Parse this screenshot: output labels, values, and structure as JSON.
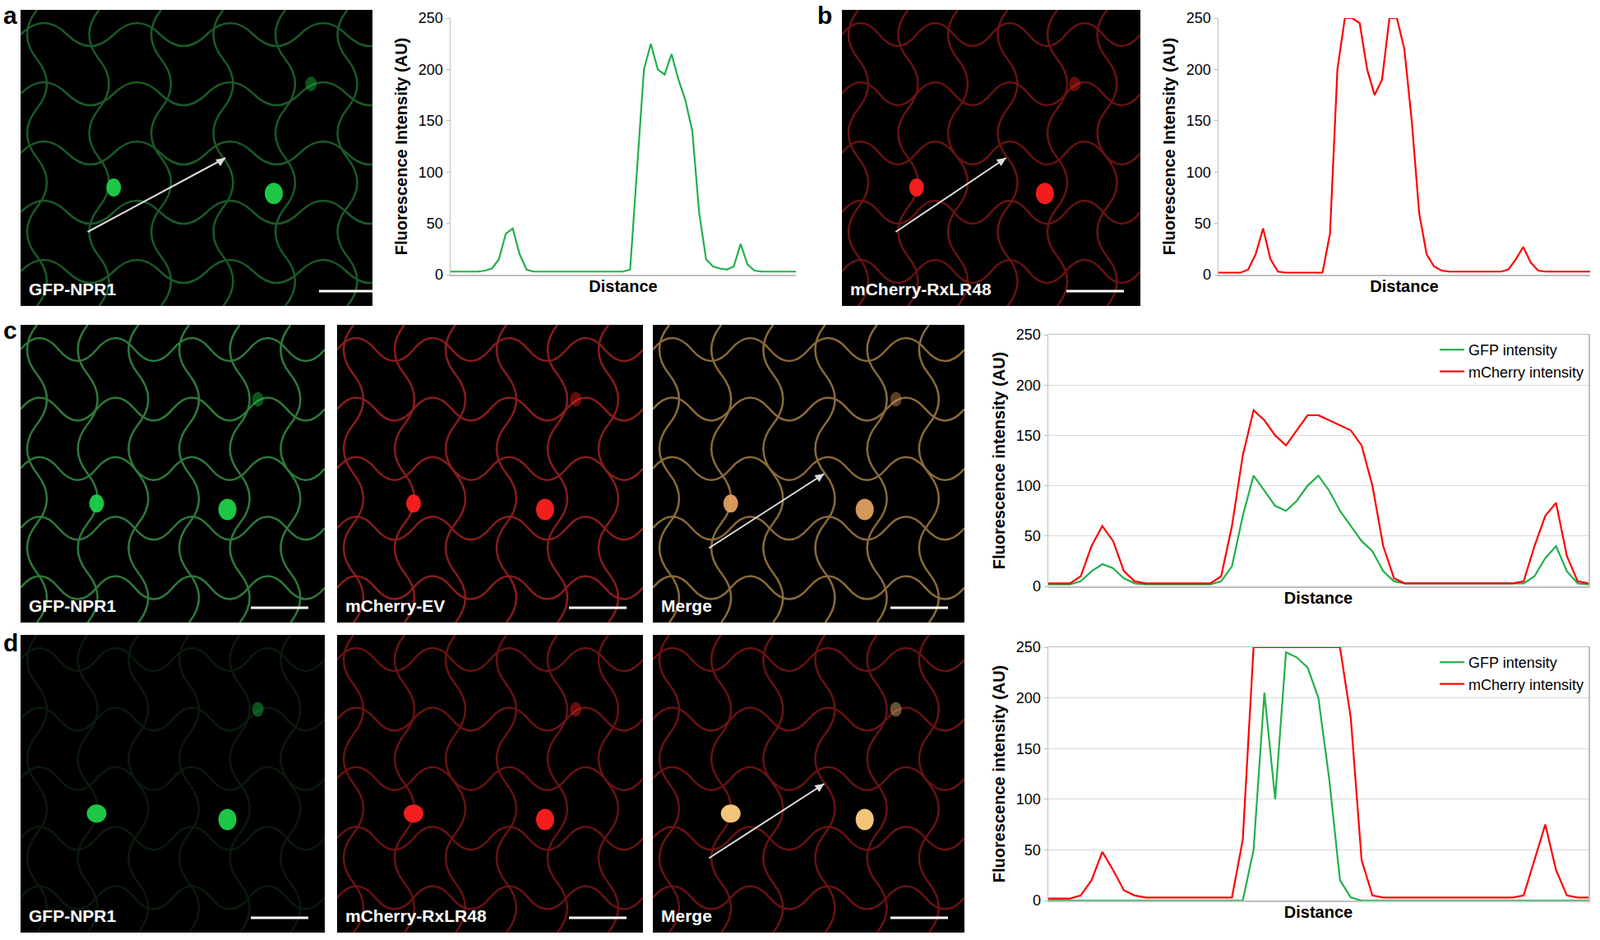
{
  "panels": [
    {
      "letter": "a",
      "images": [
        "GFP-NPR1"
      ]
    },
    {
      "letter": "b",
      "images": [
        "mCherry-RxLR48"
      ]
    },
    {
      "letter": "c",
      "images": [
        "GFP-NPR1",
        "mCherry-EV",
        "Merge"
      ]
    },
    {
      "letter": "d",
      "images": [
        "GFP-NPR1",
        "mCherry-RxLR48",
        "Merge"
      ]
    }
  ],
  "chart_data": [
    {
      "type": "line",
      "xlabel": "Distance",
      "ylabel": "Fluorescence Intensity (AU)",
      "x": [
        0,
        2,
        4,
        6,
        8,
        10,
        12,
        14,
        16,
        18,
        20,
        22,
        24,
        26,
        28,
        30,
        32,
        34,
        36,
        38,
        40,
        42,
        44,
        46,
        48,
        50,
        52,
        54,
        56,
        58,
        60,
        62,
        64,
        66,
        68,
        70,
        72,
        74,
        76,
        78,
        80,
        82,
        84,
        86,
        88,
        90,
        92,
        94,
        96,
        98,
        100
      ],
      "xlim": [
        0,
        100
      ],
      "ylim": [
        0,
        250
      ],
      "yticks": [
        0,
        50,
        100,
        150,
        200,
        250
      ],
      "grid": false,
      "tick_labels": "y",
      "series": [
        {
          "color": "#22b04b",
          "values": [
            3,
            3,
            3,
            3,
            3,
            4,
            6,
            15,
            40,
            45,
            20,
            5,
            3,
            3,
            3,
            3,
            3,
            3,
            3,
            3,
            3,
            3,
            3,
            3,
            3,
            3,
            5,
            100,
            200,
            225,
            200,
            195,
            215,
            190,
            170,
            140,
            60,
            15,
            8,
            6,
            5,
            8,
            30,
            10,
            4,
            3,
            3,
            3,
            3,
            3,
            3
          ]
        }
      ]
    },
    {
      "type": "line",
      "xlabel": "Distance",
      "ylabel": "Fluorescence Intensity (AU)",
      "x": [
        0,
        2,
        4,
        6,
        8,
        10,
        12,
        14,
        16,
        18,
        20,
        22,
        24,
        26,
        28,
        30,
        32,
        34,
        36,
        38,
        40,
        42,
        44,
        46,
        48,
        50,
        52,
        54,
        56,
        58,
        60,
        62,
        64,
        66,
        68,
        70,
        72,
        74,
        76,
        78,
        80,
        82,
        84,
        86,
        88,
        90,
        92,
        94,
        96,
        98,
        100
      ],
      "xlim": [
        0,
        100
      ],
      "ylim": [
        0,
        250
      ],
      "yticks": [
        0,
        50,
        100,
        150,
        200,
        250
      ],
      "grid": false,
      "tick_labels": "y",
      "series": [
        {
          "color": "#ff0000",
          "values": [
            2,
            2,
            2,
            2,
            5,
            20,
            45,
            15,
            3,
            2,
            2,
            2,
            2,
            2,
            2,
            40,
            200,
            250,
            250,
            245,
            200,
            175,
            190,
            250,
            250,
            220,
            150,
            60,
            20,
            8,
            4,
            3,
            3,
            3,
            3,
            3,
            3,
            3,
            3,
            5,
            15,
            27,
            12,
            4,
            3,
            3,
            3,
            3,
            3,
            3,
            3
          ]
        }
      ]
    },
    {
      "type": "line",
      "xlabel": "Distance",
      "ylabel": "Fluorescence intensity (AU)",
      "x": [
        0,
        2,
        4,
        6,
        8,
        10,
        12,
        14,
        16,
        18,
        20,
        22,
        24,
        26,
        28,
        30,
        32,
        34,
        36,
        38,
        40,
        42,
        44,
        46,
        48,
        50,
        52,
        54,
        56,
        58,
        60,
        62,
        64,
        66,
        68,
        70,
        72,
        74,
        76,
        78,
        80,
        82,
        84,
        86,
        88,
        90,
        92,
        94,
        96,
        98,
        100
      ],
      "xlim": [
        0,
        100
      ],
      "ylim": [
        0,
        250
      ],
      "yticks": [
        0,
        50,
        100,
        150,
        200,
        250
      ],
      "grid": true,
      "tick_labels": "y",
      "legend": "upper right",
      "series": [
        {
          "name": "GFP intensity",
          "color": "#22b04b",
          "values": [
            2,
            2,
            2,
            5,
            15,
            22,
            18,
            8,
            3,
            2,
            2,
            2,
            2,
            2,
            2,
            2,
            5,
            20,
            70,
            110,
            95,
            80,
            75,
            85,
            100,
            110,
            95,
            75,
            60,
            45,
            35,
            15,
            5,
            3,
            3,
            3,
            3,
            3,
            3,
            3,
            3,
            3,
            3,
            3,
            3,
            10,
            28,
            40,
            15,
            3,
            2
          ]
        },
        {
          "name": "mCherry intensity",
          "color": "#ff0000",
          "values": [
            3,
            3,
            3,
            10,
            40,
            60,
            45,
            15,
            5,
            3,
            3,
            3,
            3,
            3,
            3,
            3,
            10,
            60,
            130,
            175,
            165,
            150,
            140,
            155,
            170,
            170,
            165,
            160,
            155,
            140,
            100,
            40,
            8,
            3,
            3,
            3,
            3,
            3,
            3,
            3,
            3,
            3,
            3,
            3,
            5,
            40,
            70,
            83,
            30,
            5,
            3
          ]
        }
      ]
    },
    {
      "type": "line",
      "xlabel": "Distance",
      "ylabel": "Fluorescence intensity (AU)",
      "x": [
        0,
        2,
        4,
        6,
        8,
        10,
        12,
        14,
        16,
        18,
        20,
        22,
        24,
        26,
        28,
        30,
        32,
        34,
        36,
        38,
        40,
        42,
        44,
        46,
        48,
        50,
        52,
        54,
        56,
        58,
        60,
        62,
        64,
        66,
        68,
        70,
        72,
        74,
        76,
        78,
        80,
        82,
        84,
        86,
        88,
        90,
        92,
        94,
        96,
        98,
        100
      ],
      "xlim": [
        0,
        100
      ],
      "ylim": [
        0,
        250
      ],
      "yticks": [
        0,
        50,
        100,
        150,
        200,
        250
      ],
      "grid": true,
      "tick_labels": "y",
      "legend": "upper right",
      "series": [
        {
          "name": "GFP intensity",
          "color": "#22b04b",
          "values": [
            0,
            0,
            0,
            0,
            0,
            0,
            0,
            0,
            0,
            0,
            0,
            0,
            0,
            0,
            0,
            0,
            0,
            0,
            0,
            50,
            205,
            100,
            245,
            240,
            230,
            200,
            120,
            20,
            3,
            0,
            0,
            0,
            0,
            0,
            0,
            0,
            0,
            0,
            0,
            0,
            0,
            0,
            0,
            0,
            0,
            0,
            0,
            0,
            0,
            0,
            0
          ]
        },
        {
          "name": "mCherry intensity",
          "color": "#ff0000",
          "values": [
            2,
            2,
            2,
            5,
            20,
            48,
            30,
            10,
            5,
            3,
            3,
            3,
            3,
            3,
            3,
            3,
            3,
            3,
            60,
            250,
            250,
            250,
            250,
            250,
            250,
            250,
            250,
            250,
            180,
            40,
            5,
            3,
            3,
            3,
            3,
            3,
            3,
            3,
            3,
            3,
            3,
            3,
            3,
            3,
            5,
            40,
            75,
            30,
            5,
            3,
            3
          ]
        }
      ]
    }
  ]
}
